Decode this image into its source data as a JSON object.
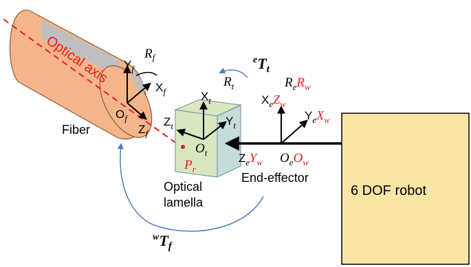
{
  "labels": {
    "fiber": "Fiber",
    "optical_axis": "Optical axis",
    "optical_lamella_line1": "Optical",
    "optical_lamella_line2": "lamella",
    "end_effector": "End-effector",
    "robot": "6 DOF robot"
  },
  "frames": {
    "fiber": {
      "origin": "O",
      "origin_sub": "f",
      "R": "R",
      "R_sub": "f",
      "X": "X",
      "X_sub": "f",
      "Y": "Y",
      "Y_sub": "f",
      "Z": "Z",
      "Z_sub": "f"
    },
    "lamella": {
      "origin": "O",
      "origin_sub": "t",
      "R": "R",
      "R_sub": "t",
      "X": "X",
      "X_sub": "t",
      "Y": "Y",
      "Y_sub": "t",
      "Z": "Z",
      "Z_sub": "t",
      "P": "P",
      "P_sub": "r"
    },
    "end_effector": {
      "origin": "O",
      "origin_sub": "e",
      "origin_w": "O",
      "origin_w_sub": "w",
      "R": "R",
      "R_sub": "e",
      "R_w": "R",
      "R_w_sub": "w",
      "X": "X",
      "X_sub": "e",
      "Z_w": "Z",
      "Z_w_sub": "w",
      "Y": "Y",
      "Y_sub": "e",
      "X_w": "X",
      "X_w_sub": "w",
      "Z": "Z",
      "Z_sub": "e",
      "Y_w": "Y",
      "Y_w_sub": "w"
    }
  },
  "transforms": {
    "eTt": {
      "sup": "e",
      "main": "T",
      "sub": "t"
    },
    "wTf": {
      "sup": "w",
      "main": "T",
      "sub": "f"
    }
  },
  "colors": {
    "fiber_body": "#f5b58a",
    "fiber_band": "#bfbfbf",
    "lamella_face": "#d8e7c0",
    "lamella_side": "#c6dcd8",
    "robot_fill": "#fbe5a6",
    "axis_red": "#e81e1e",
    "curve_blue": "#4a7cc0",
    "black": "#000000"
  }
}
